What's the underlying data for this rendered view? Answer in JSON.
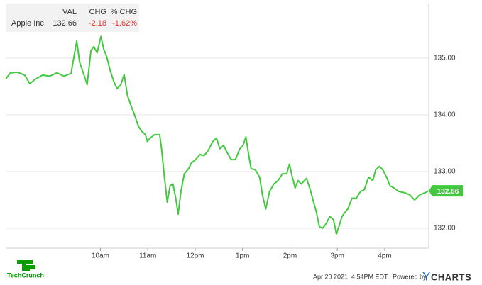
{
  "chart_data": {
    "type": "line",
    "quote": {
      "headers": [
        "VAL",
        "CHG",
        "% CHG"
      ],
      "values": [
        "132.66",
        "-2.18",
        "-1.62%"
      ]
    },
    "change_color": "#e8312f",
    "x": [
      8.0,
      8.1,
      8.25,
      8.4,
      8.51,
      8.63,
      8.78,
      8.93,
      9.08,
      9.23,
      9.38,
      9.5,
      9.56,
      9.65,
      9.72,
      9.8,
      9.86,
      9.93,
      10.01,
      10.07,
      10.13,
      10.2,
      10.28,
      10.35,
      10.43,
      10.5,
      10.57,
      10.65,
      10.72,
      10.8,
      10.87,
      10.95,
      10.99,
      11.05,
      11.14,
      11.25,
      11.29,
      11.35,
      11.41,
      11.47,
      11.53,
      11.59,
      11.64,
      11.7,
      11.77,
      11.86,
      11.92,
      12.01,
      12.1,
      12.19,
      12.28,
      12.37,
      12.45,
      12.52,
      12.6,
      12.67,
      12.76,
      12.85,
      12.94,
      13.01,
      13.07,
      13.12,
      13.18,
      13.27,
      13.36,
      13.42,
      13.49,
      13.57,
      13.66,
      13.75,
      13.84,
      13.93,
      13.99,
      14.05,
      14.11,
      14.17,
      14.24,
      14.35,
      14.44,
      14.5,
      14.56,
      14.62,
      14.69,
      14.77,
      14.84,
      14.92,
      14.98,
      15.04,
      15.1,
      15.16,
      15.22,
      15.31,
      15.4,
      15.49,
      15.57,
      15.66,
      15.75,
      15.81,
      15.89,
      15.96,
      16.04,
      16.11,
      16.2,
      16.29,
      16.41,
      16.53,
      16.63,
      16.74,
      16.86,
      16.92
    ],
    "series": [
      {
        "name": "Apple Inc",
        "color": "#43c83f",
        "values": [
          134.63,
          134.74,
          134.75,
          134.7,
          134.55,
          134.63,
          134.7,
          134.68,
          134.74,
          134.68,
          134.73,
          135.3,
          134.93,
          134.71,
          134.53,
          135.13,
          135.2,
          135.09,
          135.38,
          135.15,
          135.03,
          134.8,
          134.59,
          134.46,
          134.53,
          134.71,
          134.34,
          134.15,
          134.0,
          133.8,
          133.71,
          133.65,
          133.53,
          133.59,
          133.65,
          133.65,
          133.4,
          132.9,
          132.46,
          132.75,
          132.78,
          132.53,
          132.25,
          132.65,
          132.96,
          133.05,
          133.15,
          133.21,
          133.3,
          133.28,
          133.38,
          133.53,
          133.59,
          133.4,
          133.46,
          133.34,
          133.21,
          133.21,
          133.4,
          133.46,
          133.61,
          133.34,
          133.05,
          133.03,
          132.9,
          132.59,
          132.34,
          132.65,
          132.78,
          132.84,
          132.96,
          132.96,
          133.13,
          132.9,
          132.71,
          132.84,
          132.78,
          132.88,
          132.65,
          132.46,
          132.28,
          132.03,
          132.0,
          132.09,
          132.21,
          132.15,
          131.9,
          132.05,
          132.21,
          132.28,
          132.34,
          132.53,
          132.53,
          132.65,
          132.68,
          132.9,
          132.84,
          133.03,
          133.09,
          133.03,
          132.9,
          132.75,
          132.71,
          132.65,
          132.63,
          132.59,
          132.5,
          132.59,
          132.63,
          132.66
        ],
        "last_label": "132.66"
      }
    ],
    "xlim": [
      8,
      16.93
    ],
    "xticks": [
      {
        "value": 10,
        "label": "10am"
      },
      {
        "value": 11,
        "label": "11am"
      },
      {
        "value": 12,
        "label": "12pm"
      },
      {
        "value": 13,
        "label": "1pm"
      },
      {
        "value": 14,
        "label": "2pm"
      },
      {
        "value": 15,
        "label": "3pm"
      },
      {
        "value": 16,
        "label": "4pm"
      }
    ],
    "ylim": [
      131.65,
      135.96
    ],
    "yticks": [
      {
        "value": 132,
        "label": "132.00"
      },
      {
        "value": 133,
        "label": "133.00"
      },
      {
        "value": 134,
        "label": "134.00"
      },
      {
        "value": 135,
        "label": "135.00"
      }
    ],
    "grid": true,
    "footer": {
      "date": "Apr 20 2021, 4:54PM EDT.",
      "powered_by": "Powered by",
      "provider_initial": "Y",
      "provider_rest": "CHARTS",
      "publisher": "TechCrunch"
    }
  }
}
